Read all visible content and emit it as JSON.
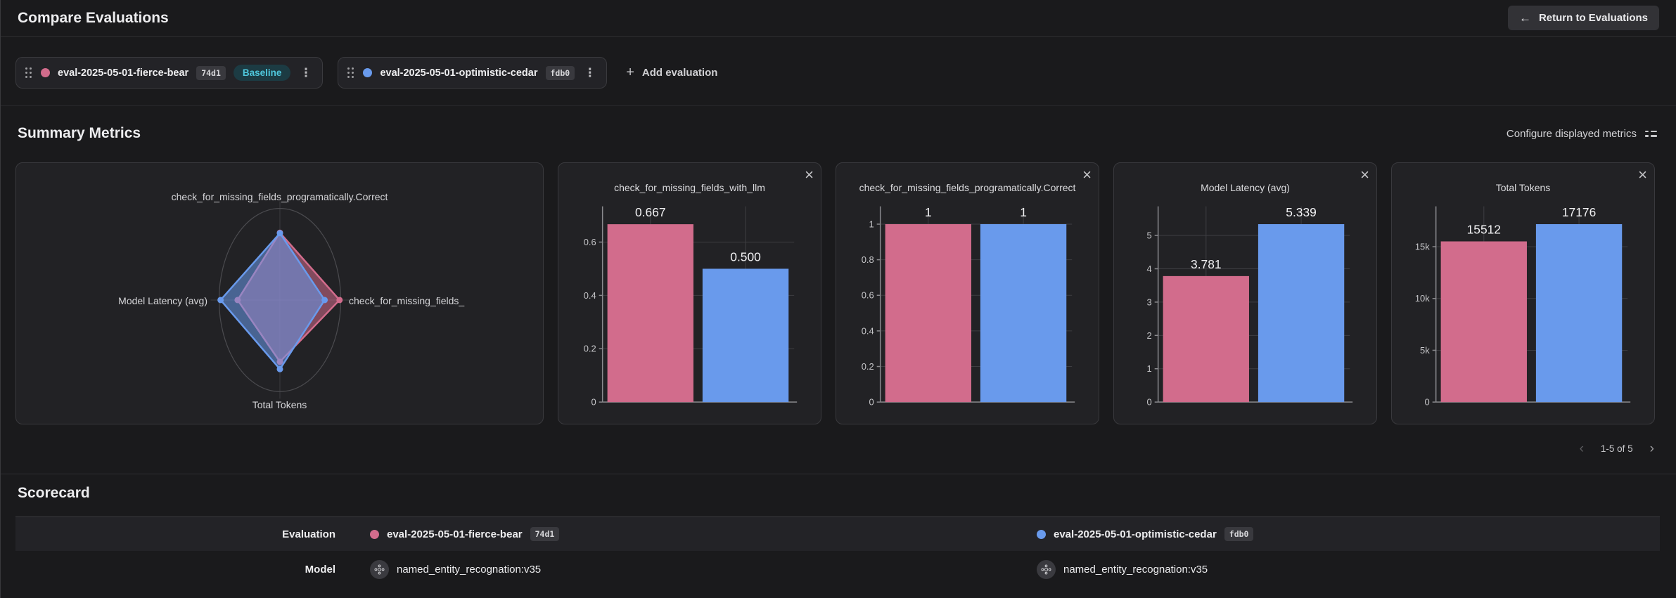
{
  "icons": {
    "back_arrow": "←",
    "plus": "+",
    "kebab": "⋮",
    "close": "×",
    "prev": "‹",
    "next": "›"
  },
  "header": {
    "title": "Compare Evaluations",
    "return_button": "Return to Evaluations"
  },
  "toolbar": {
    "evaluations": [
      {
        "name": "eval-2025-05-01-fierce-bear",
        "id": "74d1",
        "color": "#d26c8c",
        "baseline_label": "Baseline"
      },
      {
        "name": "eval-2025-05-01-optimistic-cedar",
        "id": "fdb0",
        "color": "#699aec"
      }
    ],
    "add_evaluation_label": "Add evaluation"
  },
  "summary": {
    "title": "Summary Metrics",
    "configure_label": "Configure displayed metrics",
    "pagination": "1-5 of 5"
  },
  "chart_data": [
    {
      "type": "radar",
      "axis_labels": {
        "top": "check_for_missing_fields_programatically.Correct",
        "right": "check_for_missing_fields_",
        "bottom": "Total Tokens",
        "left": "Model Latency (avg)"
      },
      "series": [
        {
          "name": "eval-2025-05-01-fierce-bear",
          "color": "#d26c8c",
          "values": {
            "top": 1,
            "right": 0.667,
            "bottom": 15512,
            "left": 3.781
          },
          "plot_fractions": {
            "top": 0.735,
            "right": 0.98,
            "bottom": 0.675,
            "left": 0.695
          }
        },
        {
          "name": "eval-2025-05-01-optimistic-cedar",
          "color": "#699aec",
          "values": {
            "top": 1,
            "right": 0.5,
            "bottom": 17176,
            "left": 5.339
          },
          "plot_fractions": {
            "top": 0.73,
            "right": 0.735,
            "bottom": 0.755,
            "left": 0.975
          }
        }
      ]
    },
    {
      "type": "bar",
      "title": "check_for_missing_fields_with_llm",
      "categories": [
        "eval-2025-05-01-fierce-bear",
        "eval-2025-05-01-optimistic-cedar"
      ],
      "values": [
        0.667,
        0.5
      ],
      "value_labels": [
        "0.667",
        "0.500"
      ],
      "colors": [
        "#d26c8c",
        "#699aec"
      ],
      "yticks": [
        {
          "value": 0.6,
          "label": "0.6"
        },
        {
          "value": 0.4,
          "label": "0.4"
        },
        {
          "value": 0.2,
          "label": "0.2"
        },
        {
          "value": 0,
          "label": "0"
        }
      ],
      "ymax": 0.734
    },
    {
      "type": "bar",
      "title": "check_for_missing_fields_programatically.Correct",
      "categories": [
        "eval-2025-05-01-fierce-bear",
        "eval-2025-05-01-optimistic-cedar"
      ],
      "values": [
        1,
        1
      ],
      "value_labels": [
        "1",
        "1"
      ],
      "colors": [
        "#d26c8c",
        "#699aec"
      ],
      "yticks": [
        {
          "value": 1,
          "label": "1"
        },
        {
          "value": 0.8,
          "label": "0.8"
        },
        {
          "value": 0.6,
          "label": "0.6"
        },
        {
          "value": 0.4,
          "label": "0.4"
        },
        {
          "value": 0.2,
          "label": "0.2"
        },
        {
          "value": 0,
          "label": "0"
        }
      ],
      "ymax": 1.1
    },
    {
      "type": "bar",
      "title": "Model Latency (avg)",
      "categories": [
        "eval-2025-05-01-fierce-bear",
        "eval-2025-05-01-optimistic-cedar"
      ],
      "values": [
        3.781,
        5.339
      ],
      "value_labels": [
        "3.781",
        "5.339"
      ],
      "colors": [
        "#d26c8c",
        "#699aec"
      ],
      "yticks": [
        {
          "value": 5,
          "label": "5"
        },
        {
          "value": 4,
          "label": "4"
        },
        {
          "value": 3,
          "label": "3"
        },
        {
          "value": 2,
          "label": "2"
        },
        {
          "value": 1,
          "label": "1"
        },
        {
          "value": 0,
          "label": "0"
        }
      ],
      "ymax": 5.873
    },
    {
      "type": "bar",
      "title": "Total Tokens",
      "categories": [
        "eval-2025-05-01-fierce-bear",
        "eval-2025-05-01-optimistic-cedar"
      ],
      "values": [
        15512,
        17176
      ],
      "value_labels": [
        "15512",
        "17176"
      ],
      "colors": [
        "#d26c8c",
        "#699aec"
      ],
      "yticks": [
        {
          "value": 15000,
          "label": "15k"
        },
        {
          "value": 10000,
          "label": "10k"
        },
        {
          "value": 5000,
          "label": "5k"
        },
        {
          "value": 0,
          "label": "0"
        }
      ],
      "ymax": 18894
    }
  ],
  "scorecard": {
    "title": "Scorecard",
    "rows": [
      {
        "label": "Evaluation",
        "cells": [
          {
            "name": "eval-2025-05-01-fierce-bear",
            "id": "74d1",
            "color": "#d26c8c"
          },
          {
            "name": "eval-2025-05-01-optimistic-cedar",
            "id": "fdb0",
            "color": "#699aec"
          }
        ]
      },
      {
        "label": "Model",
        "cells": [
          {
            "name": "named_entity_recognation:v35"
          },
          {
            "name": "named_entity_recognation:v35"
          }
        ]
      }
    ]
  }
}
